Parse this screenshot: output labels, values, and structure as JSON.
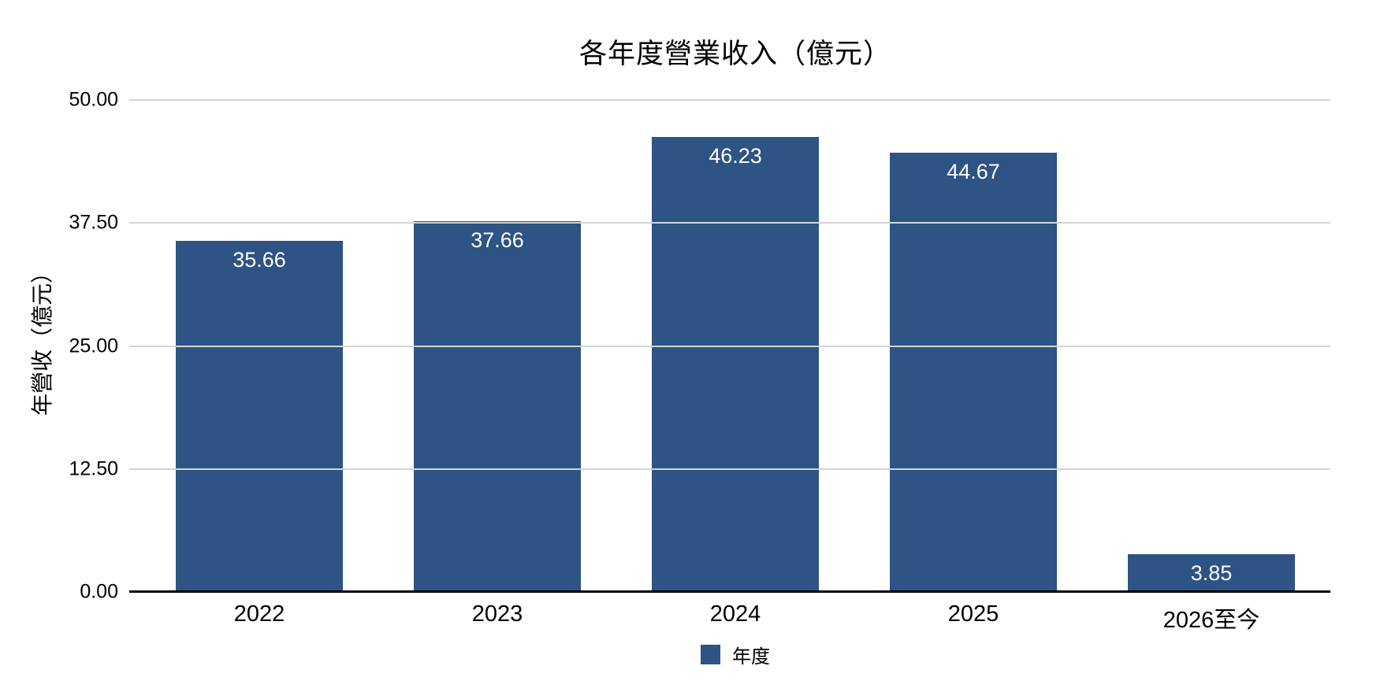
{
  "colors": {
    "bar_fill": "#2E5385",
    "gridline": "#D4D4D4",
    "axis_line": "#000000",
    "value_label": "#FFFFFF",
    "text": "#000000",
    "background": "#FFFFFF"
  },
  "chart_data": {
    "type": "bar",
    "title": "各年度營業收入（億元）",
    "xlabel": "",
    "ylabel": "年營收（億元）",
    "categories": [
      "2022",
      "2023",
      "2024",
      "2025",
      "2026至今"
    ],
    "values": [
      35.66,
      37.66,
      46.23,
      44.67,
      3.85
    ],
    "value_labels": [
      "35.66",
      "37.66",
      "46.23",
      "44.67",
      "3.85"
    ],
    "ylim": [
      0,
      50
    ],
    "y_ticks": [
      {
        "value": 50,
        "label": "50.00"
      },
      {
        "value": 37.5,
        "label": "37.50"
      },
      {
        "value": 25,
        "label": "25.00"
      },
      {
        "value": 12.5,
        "label": "12.50"
      },
      {
        "value": 0,
        "label": "0.00"
      }
    ],
    "grid": "horizontal",
    "legend_position": "bottom",
    "legend": [
      {
        "label": "年度",
        "color": "#2E5385"
      }
    ]
  }
}
